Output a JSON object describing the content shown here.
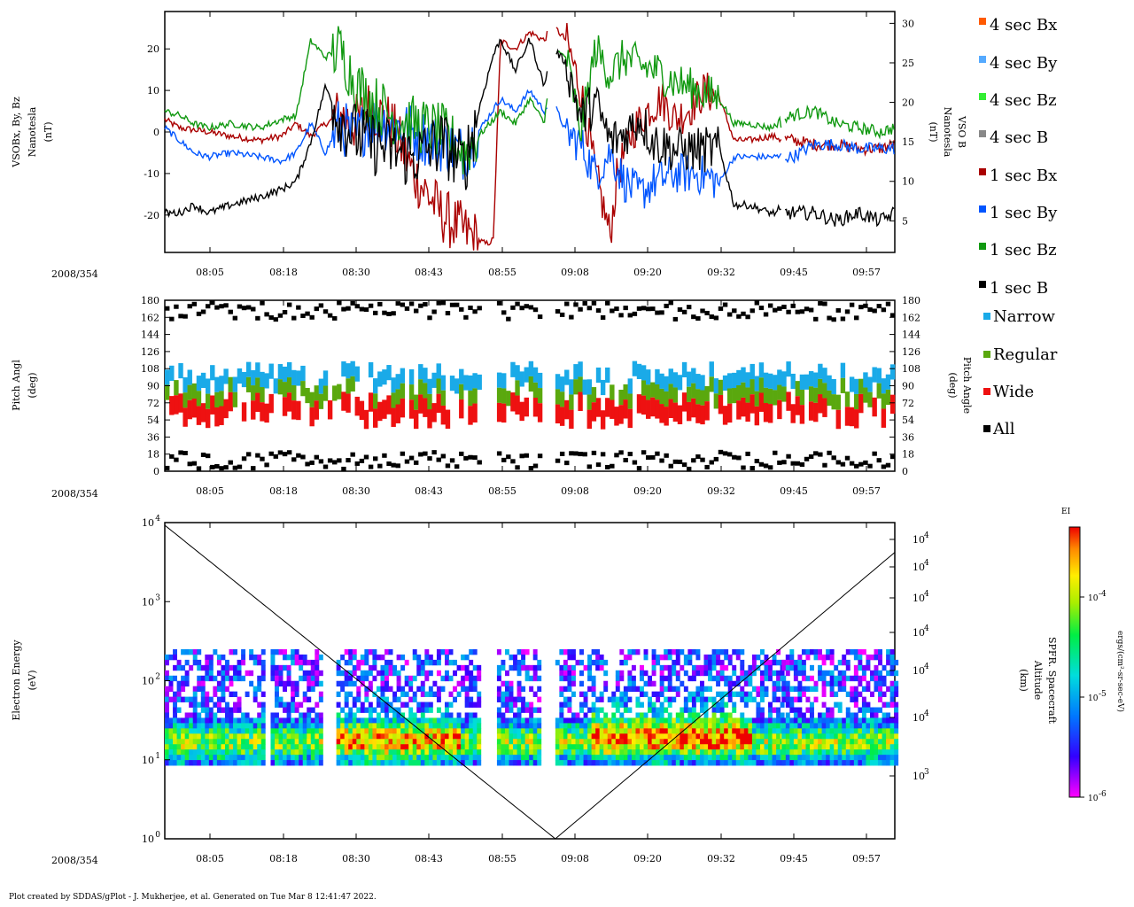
{
  "footer": "Plot created by SDDAS/gPlot - J. Mukherjee, et al.  Generated on Tue Mar 8 12:41:47 2022.",
  "date_label": "2008/354",
  "time_ticks": [
    "08:05",
    "08:18",
    "08:30",
    "08:43",
    "08:55",
    "09:08",
    "09:20",
    "09:32",
    "09:45",
    "09:57"
  ],
  "chart_data": [
    {
      "type": "line",
      "name": "magnetic-field",
      "ylabel": [
        "VSOBx, By, Bz",
        "Nanotesla",
        "(nT)"
      ],
      "ylabel_right": [
        "VSO B",
        "Nanotesla",
        "(nT)"
      ],
      "ylim": [
        -29,
        29
      ],
      "ylim_right": [
        1,
        31.5
      ],
      "yticks": [
        "20",
        "10",
        "0",
        "-10",
        "-20"
      ],
      "yticks_values": [
        20,
        10,
        0,
        -10,
        -20
      ],
      "yticks_right": [
        "30",
        "25",
        "20",
        "15",
        "10",
        "5"
      ],
      "yticks_right_values": [
        30,
        25,
        20,
        15,
        10,
        5
      ],
      "legend": [
        {
          "label": "4 sec Bx",
          "color": "#ff5a00"
        },
        {
          "label": "4 sec By",
          "color": "#55aaff"
        },
        {
          "label": "4 sec Bz",
          "color": "#33ee33"
        },
        {
          "label": "4 sec B",
          "color": "#888888"
        },
        {
          "label": "1 sec Bx",
          "color": "#aa0000"
        },
        {
          "label": "1 sec By",
          "color": "#0055ff"
        },
        {
          "label": "1 sec Bz",
          "color": "#119911"
        },
        {
          "label": "1 sec B",
          "color": "#000000"
        }
      ],
      "series": [
        {
          "name": "Bx",
          "color": "#aa0000",
          "x": [
            0,
            2,
            6,
            9,
            13,
            16,
            18,
            20,
            22,
            24,
            26,
            28,
            31,
            34,
            38,
            41,
            44,
            45,
            46,
            48,
            50,
            52,
            53,
            55,
            57,
            59,
            61,
            62,
            64,
            66,
            68,
            70,
            72,
            74,
            76,
            78,
            80,
            83,
            86,
            89,
            92,
            95,
            98,
            100
          ],
          "y": [
            3,
            1,
            0,
            -1,
            -2,
            -1,
            2,
            -1,
            2,
            4,
            2,
            6,
            2,
            -10,
            -20,
            -24,
            -27,
            -26,
            22,
            20,
            24,
            22,
            26,
            22,
            10,
            -10,
            -25,
            -10,
            0,
            5,
            8,
            3,
            6,
            10,
            8,
            -2,
            -2,
            -1,
            -2,
            -3,
            -3,
            -4,
            -4,
            -3
          ]
        },
        {
          "name": "By",
          "color": "#0055ff",
          "x": [
            0,
            2,
            4,
            6,
            9,
            13,
            16,
            18,
            20,
            22,
            24,
            26,
            28,
            31,
            34,
            38,
            41,
            46,
            48,
            50,
            52,
            53,
            55,
            57,
            59,
            61,
            63,
            65,
            67,
            70,
            73,
            76,
            78,
            80,
            83,
            86,
            89,
            92,
            95,
            98,
            100
          ],
          "y": [
            1,
            -2,
            -5,
            -6,
            -5,
            -6,
            -7,
            -5,
            2,
            -5,
            2,
            -2,
            3,
            2,
            0,
            -3,
            -5,
            8,
            5,
            10,
            5,
            8,
            0,
            -3,
            -10,
            -5,
            -12,
            -15,
            -12,
            -10,
            -10,
            -12,
            -6,
            -6,
            -6,
            -6,
            -3,
            -3,
            -4,
            -4,
            -4
          ]
        },
        {
          "name": "Bz",
          "color": "#119911",
          "x": [
            0,
            2,
            4,
            6,
            9,
            13,
            16,
            18,
            20,
            22,
            24,
            26,
            28,
            31,
            34,
            38,
            41,
            46,
            48,
            50,
            52,
            53,
            55,
            57,
            59,
            61,
            63,
            65,
            67,
            70,
            73,
            76,
            78,
            80,
            83,
            86,
            89,
            92,
            95,
            98,
            100
          ],
          "y": [
            5,
            4,
            2,
            1,
            2,
            1,
            3,
            4,
            22,
            18,
            20,
            12,
            8,
            4,
            2,
            0,
            -5,
            5,
            2,
            8,
            2,
            20,
            18,
            0,
            20,
            14,
            18,
            16,
            15,
            12,
            10,
            8,
            2,
            2,
            1,
            4,
            5,
            2,
            1,
            0,
            1
          ]
        },
        {
          "name": "B",
          "color": "#000000",
          "x": [
            0,
            2,
            4,
            6,
            9,
            13,
            16,
            18,
            20,
            22,
            24,
            26,
            28,
            31,
            34,
            38,
            41,
            45,
            46,
            48,
            50,
            52,
            53,
            55,
            57,
            59,
            61,
            63,
            65,
            67,
            70,
            73,
            76,
            78,
            80,
            83,
            86,
            89,
            92,
            95,
            98,
            100
          ],
          "y": [
            6,
            6,
            7,
            6,
            7,
            8,
            9,
            10,
            15,
            22,
            18,
            16,
            15,
            14,
            13,
            15,
            12,
            26,
            28,
            24,
            28,
            22,
            27,
            25,
            18,
            20,
            15,
            16,
            18,
            15,
            14,
            14,
            14,
            7,
            7,
            6,
            6,
            6,
            5,
            6,
            5,
            6
          ]
        }
      ]
    },
    {
      "type": "heatmap",
      "name": "pitch-angle",
      "ylabel": [
        "Pitch Angl",
        "(deg)"
      ],
      "ylabel_right": [
        "Pitch Angle",
        "(deg)"
      ],
      "ylim": [
        0,
        180
      ],
      "yticks": [
        "180",
        "162",
        "144",
        "126",
        "108",
        "90",
        "72",
        "54",
        "36",
        "18",
        "0"
      ],
      "yticks_values": [
        180,
        162,
        144,
        126,
        108,
        90,
        72,
        54,
        36,
        18,
        0
      ],
      "legend": [
        {
          "label": "Narrow",
          "color": "#1aaae8"
        },
        {
          "label": "Regular",
          "color": "#5aa80e"
        },
        {
          "label": "Wide",
          "color": "#ee1111"
        },
        {
          "label": "All",
          "color": "#000000"
        }
      ],
      "data_intervals": [
        [
          0,
          43
        ],
        [
          45.5,
          51.5
        ],
        [
          53.5,
          84.5
        ],
        [
          84.5,
          100
        ]
      ]
    },
    {
      "type": "heatmap",
      "name": "electron-energy",
      "ylabel": [
        "Electron Energy",
        "(eV)"
      ],
      "ylabel_right": [
        "SPFR. Spacecraft",
        "Altitude",
        "(km)"
      ],
      "yscale": "log",
      "ylim": [
        1,
        10000
      ],
      "yticks": [
        {
          "base": "10",
          "exp": "4"
        },
        {
          "base": "10",
          "exp": "3"
        },
        {
          "base": "10",
          "exp": "2"
        },
        {
          "base": "10",
          "exp": "1"
        },
        {
          "base": "10",
          "exp": "0"
        }
      ],
      "yticks_values": [
        10000,
        1000,
        100,
        10,
        1
      ],
      "yticks_right": [
        {
          "base": "10",
          "exp": "4"
        },
        {
          "base": "10",
          "exp": "4"
        },
        {
          "base": "10",
          "exp": "4"
        },
        {
          "base": "10",
          "exp": "4"
        },
        {
          "base": "10",
          "exp": "4"
        },
        {
          "base": "10",
          "exp": "4"
        },
        {
          "base": "10",
          "exp": "3"
        }
      ],
      "colorbar": {
        "title": "EI",
        "label": "ergs/(cm²-sr-sec-eV)",
        "ticks": [
          {
            "base": "10",
            "exp": "-4"
          },
          {
            "base": "10",
            "exp": "-5"
          },
          {
            "base": "10",
            "exp": "-6"
          }
        ],
        "ticks_values": [
          0.0001,
          1e-05,
          1e-06
        ]
      },
      "data_intervals": [
        [
          0,
          13.5
        ],
        [
          14.5,
          21.5
        ],
        [
          23.5,
          43
        ],
        [
          45.5,
          51.5
        ],
        [
          53.5,
          84.5
        ],
        [
          84.5,
          100
        ]
      ],
      "altitude_curve": {
        "x": [
          0,
          53.5,
          100
        ],
        "log_alt": [
          4.05,
          0.0,
          3.7
        ]
      }
    }
  ]
}
